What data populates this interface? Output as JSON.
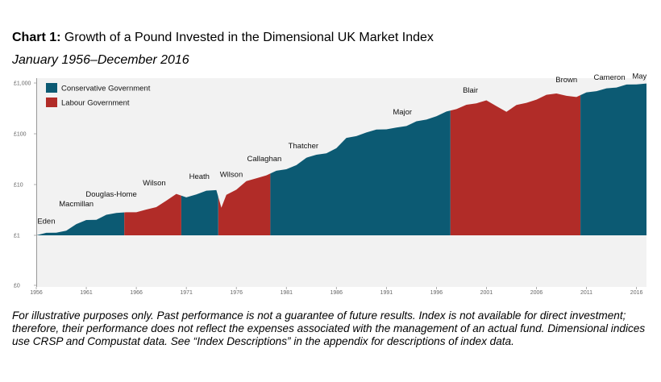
{
  "title": {
    "prefix": "Chart 1:",
    "text": " Growth of a Pound Invested in the Dimensional UK Market Index"
  },
  "subtitle": "January 1956–December 2016",
  "footnote": "For illustrative purposes only. Past performance is not a guarantee of future results. Index is not available for direct investment; therefore, their performance does not reflect the expenses associated with the management of an actual fund. Dimensional indices use CRSP and Compustat data. See “Index Descriptions” in the appendix for descriptions of index data.",
  "colors": {
    "conservative": "#0c5a73",
    "labour": "#b12c28",
    "background": "#f2f2f2"
  },
  "chart_data": {
    "type": "area",
    "y_scale": "log",
    "ylim": [
      0,
      1000
    ],
    "y_ticks": [
      {
        "value": 1000,
        "label": "£1,000"
      },
      {
        "value": 100,
        "label": "£100"
      },
      {
        "value": 10,
        "label": "£10"
      },
      {
        "value": 1,
        "label": "£1"
      },
      {
        "value": 0,
        "label": "£0"
      }
    ],
    "xlim": [
      1956,
      2017
    ],
    "x_ticks": [
      1956,
      1961,
      1966,
      1971,
      1976,
      1981,
      1986,
      1991,
      1996,
      2001,
      2006,
      2011,
      2016
    ],
    "legend": {
      "position": "top-left",
      "entries": [
        {
          "name": "Conservative Government",
          "color": "#0c5a73"
        },
        {
          "name": "Labour Government",
          "color": "#b12c28"
        }
      ]
    },
    "series": [
      {
        "name": "Growth of £1",
        "x": [
          1956,
          1957,
          1958,
          1959,
          1960,
          1961,
          1962,
          1963,
          1964,
          1965,
          1966,
          1967,
          1968,
          1969,
          1970,
          1971,
          1972,
          1973,
          1974,
          1974.5,
          1975,
          1976,
          1977,
          1978,
          1979,
          1980,
          1981,
          1982,
          1983,
          1984,
          1985,
          1986,
          1987,
          1988,
          1989,
          1990,
          1991,
          1992,
          1993,
          1994,
          1995,
          1996,
          1997,
          1998,
          1999,
          2000,
          2001,
          2002,
          2003,
          2004,
          2005,
          2006,
          2007,
          2008,
          2009,
          2010,
          2011,
          2012,
          2013,
          2014,
          2015,
          2016,
          2017
        ],
        "y": [
          1.0,
          1.1,
          1.15,
          1.3,
          1.6,
          2.0,
          2.1,
          2.4,
          2.7,
          2.9,
          3.0,
          3.1,
          3.6,
          5.0,
          6.2,
          5.5,
          6.5,
          8.0,
          7.5,
          3.5,
          6.5,
          7.5,
          11.5,
          13.5,
          16.0,
          18.0,
          20.0,
          25.0,
          32.0,
          38.0,
          42.0,
          55.0,
          80.0,
          90.0,
          110.0,
          115.0,
          120.0,
          135.0,
          150.0,
          170.0,
          190.0,
          230.0,
          260.0,
          300.0,
          380.0,
          420.0,
          440.0,
          350.0,
          280.0,
          350.0,
          400.0,
          480.0,
          620.0,
          600.0,
          560.0,
          550.0,
          620.0,
          680.0,
          800.0,
          860.0,
          900.0,
          940.0,
          980.0
        ]
      }
    ],
    "periods": [
      {
        "start": 1956,
        "end": 1964.8,
        "party": "Conservative"
      },
      {
        "start": 1964.8,
        "end": 1970.5,
        "party": "Labour"
      },
      {
        "start": 1970.5,
        "end": 1974.2,
        "party": "Conservative"
      },
      {
        "start": 1974.2,
        "end": 1979.4,
        "party": "Labour"
      },
      {
        "start": 1979.4,
        "end": 1997.4,
        "party": "Conservative"
      },
      {
        "start": 1997.4,
        "end": 2010.4,
        "party": "Labour"
      },
      {
        "start": 2010.4,
        "end": 2017,
        "party": "Conservative"
      }
    ],
    "annotations": [
      {
        "label": "Eden",
        "x": 1957.0,
        "y": 1.7
      },
      {
        "label": "Macmillan",
        "x": 1960.0,
        "y": 3.7
      },
      {
        "label": "Douglas-Home",
        "x": 1963.5,
        "y": 5.8
      },
      {
        "label": "Wilson",
        "x": 1967.8,
        "y": 9.7
      },
      {
        "label": "Heath",
        "x": 1972.3,
        "y": 12.8
      },
      {
        "label": "Wilson",
        "x": 1975.5,
        "y": 14.2
      },
      {
        "label": "Callaghan",
        "x": 1978.8,
        "y": 29
      },
      {
        "label": "Thatcher",
        "x": 1982.7,
        "y": 52
      },
      {
        "label": "Major",
        "x": 1992.6,
        "y": 240
      },
      {
        "label": "Blair",
        "x": 1999.4,
        "y": 640
      },
      {
        "label": "Brown",
        "x": 2009.0,
        "y": 1030
      },
      {
        "label": "Cameron",
        "x": 2013.3,
        "y": 1150
      },
      {
        "label": "May",
        "x": 2016.3,
        "y": 1230
      }
    ]
  }
}
